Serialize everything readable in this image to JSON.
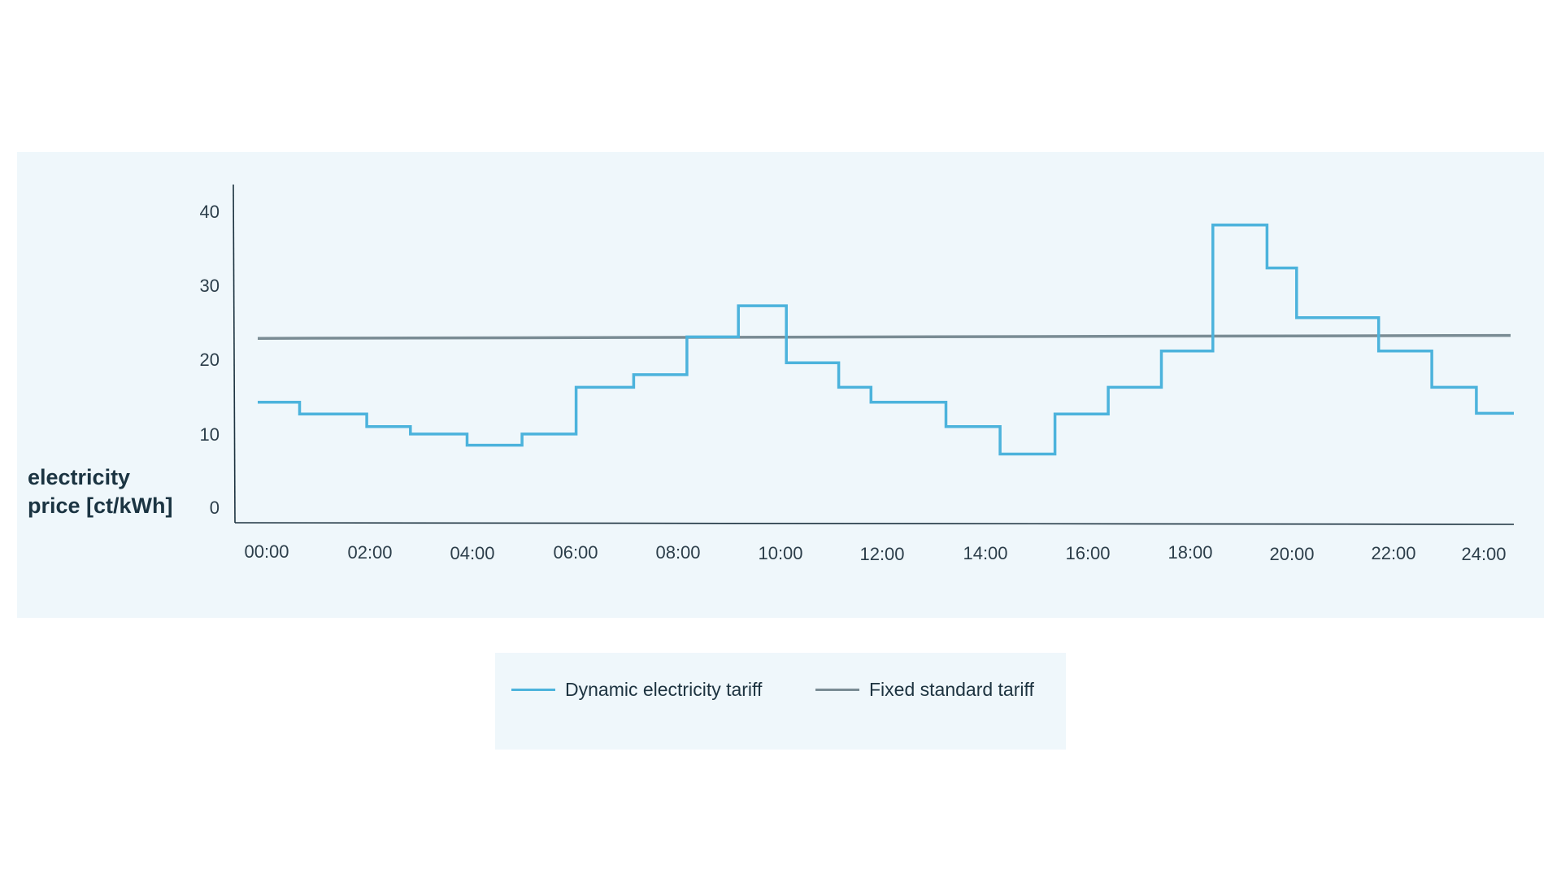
{
  "chart_data": {
    "type": "line",
    "step": true,
    "title": "",
    "xlabel": "",
    "ylabel": "electricity price [ct/kWh]",
    "ylabel_lines": [
      "electricity",
      "price [ct/kWh]"
    ],
    "ylim": [
      0,
      40
    ],
    "yticks": [
      "0",
      "10",
      "20",
      "30",
      "40"
    ],
    "xticks": [
      "00:00",
      "02:00",
      "04:00",
      "06:00",
      "08:00",
      "10:00",
      "12:00",
      "14:00",
      "16:00",
      "18:00",
      "20:00",
      "22:00",
      "24:00"
    ],
    "grid": false,
    "legend_position": "bottom",
    "series": [
      {
        "name": "Dynamic electricity tariff",
        "color": "#4cb3dc",
        "steps": [
          {
            "from": "00:00",
            "to": "00:48",
            "value": 14.4
          },
          {
            "from": "00:48",
            "to": "02:05",
            "value": 12.8
          },
          {
            "from": "02:05",
            "to": "02:55",
            "value": 11.1
          },
          {
            "from": "02:55",
            "to": "04:00",
            "value": 10.1
          },
          {
            "from": "04:00",
            "to": "05:03",
            "value": 8.6
          },
          {
            "from": "05:03",
            "to": "06:05",
            "value": 10.1
          },
          {
            "from": "06:05",
            "to": "07:11",
            "value": 16.4
          },
          {
            "from": "07:11",
            "to": "08:12",
            "value": 18.1
          },
          {
            "from": "08:12",
            "to": "09:11",
            "value": 23.2
          },
          {
            "from": "09:11",
            "to": "10:06",
            "value": 27.4
          },
          {
            "from": "10:06",
            "to": "11:06",
            "value": 19.7
          },
          {
            "from": "11:06",
            "to": "11:43",
            "value": 16.4
          },
          {
            "from": "11:43",
            "to": "13:09",
            "value": 14.4
          },
          {
            "from": "13:09",
            "to": "14:11",
            "value": 11.1
          },
          {
            "from": "14:11",
            "to": "15:14",
            "value": 7.4
          },
          {
            "from": "15:14",
            "to": "16:15",
            "value": 12.8
          },
          {
            "from": "16:15",
            "to": "17:16",
            "value": 16.4
          },
          {
            "from": "17:16",
            "to": "18:15",
            "value": 21.3
          },
          {
            "from": "18:15",
            "to": "19:17",
            "value": 38.3
          },
          {
            "from": "19:17",
            "to": "19:51",
            "value": 32.5
          },
          {
            "from": "19:51",
            "to": "21:25",
            "value": 25.8
          },
          {
            "from": "21:25",
            "to": "22:26",
            "value": 21.3
          },
          {
            "from": "22:26",
            "to": "23:17",
            "value": 16.4
          },
          {
            "from": "23:17",
            "to": "24:00",
            "value": 12.9
          }
        ]
      },
      {
        "name": "Fixed standard tariff",
        "color": "#7a8c94",
        "values": [
          {
            "x": "00:00",
            "value": 23.0
          },
          {
            "x": "24:00",
            "value": 23.4
          }
        ]
      }
    ]
  },
  "legend": {
    "dynamic_label": "Dynamic electricity tariff",
    "fixed_label": "Fixed standard tariff"
  },
  "colors": {
    "panel_bg": "#eff7fb",
    "dynamic": "#4cb3dc",
    "fixed": "#7a8c94",
    "axis": "#1d3340",
    "text": "#1d3340"
  }
}
